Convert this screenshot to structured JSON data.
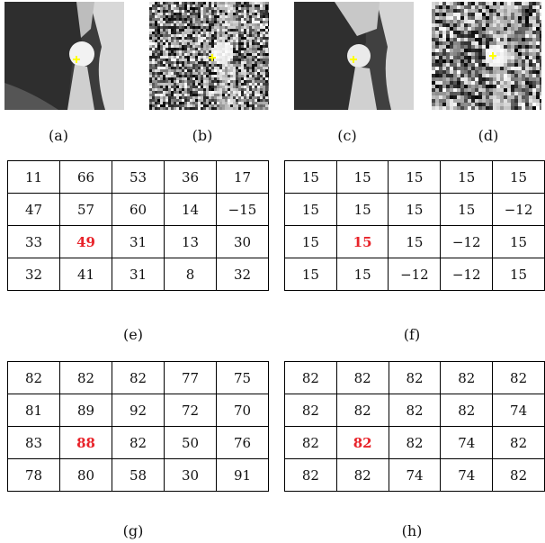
{
  "figure": {
    "panels": [
      {
        "id": "a",
        "caption": "(a)"
      },
      {
        "id": "b",
        "caption": "(b)"
      },
      {
        "id": "c",
        "caption": "(c)"
      },
      {
        "id": "d",
        "caption": "(d)"
      }
    ],
    "tables": [
      {
        "id": "e",
        "caption": "(e)",
        "highlight": [
          2,
          1
        ],
        "rows": [
          [
            "11",
            "66",
            "53",
            "36",
            "17"
          ],
          [
            "47",
            "57",
            "60",
            "14",
            "−15"
          ],
          [
            "33",
            "49",
            "31",
            "13",
            "30"
          ],
          [
            "32",
            "41",
            "31",
            "8",
            "32"
          ]
        ]
      },
      {
        "id": "f",
        "caption": "(f)",
        "highlight": [
          2,
          1
        ],
        "rows": [
          [
            "15",
            "15",
            "15",
            "15",
            "15"
          ],
          [
            "15",
            "15",
            "15",
            "15",
            "−12"
          ],
          [
            "15",
            "15",
            "15",
            "−12",
            "15"
          ],
          [
            "15",
            "15",
            "−12",
            "−12",
            "15"
          ]
        ]
      },
      {
        "id": "g",
        "caption": "(g)",
        "highlight": [
          2,
          1
        ],
        "rows": [
          [
            "82",
            "82",
            "82",
            "77",
            "75"
          ],
          [
            "81",
            "89",
            "92",
            "72",
            "70"
          ],
          [
            "83",
            "88",
            "82",
            "50",
            "76"
          ],
          [
            "78",
            "80",
            "58",
            "30",
            "91"
          ]
        ]
      },
      {
        "id": "h",
        "caption": "(h)",
        "highlight": [
          2,
          1
        ],
        "rows": [
          [
            "82",
            "82",
            "82",
            "82",
            "82"
          ],
          [
            "82",
            "82",
            "82",
            "82",
            "74"
          ],
          [
            "82",
            "82",
            "82",
            "74",
            "82"
          ],
          [
            "82",
            "82",
            "74",
            "74",
            "82"
          ]
        ]
      }
    ],
    "highlight_color": "#e8232a",
    "marker_color": "#ffff00"
  }
}
